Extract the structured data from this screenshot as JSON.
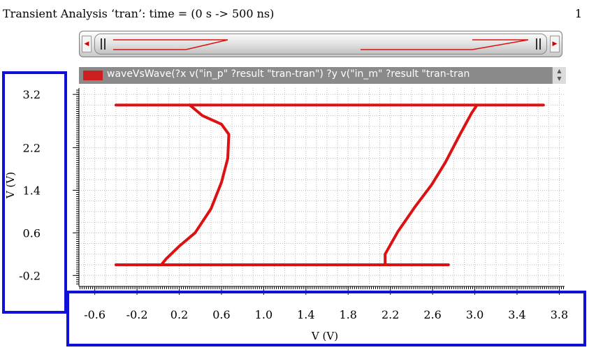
{
  "header": {
    "title": "Transient Analysis ‘tran’: time = (0 s -> 500 ns)",
    "page_number": "1"
  },
  "overview": {
    "left_arrow_icon": "scroll-left-icon",
    "right_arrow_icon": "scroll-right-icon"
  },
  "legend": {
    "label": "waveVsWave(?x v(\"in_p\" ?result \"tran-tran\") ?y v(\"in_m\" ?result \"tran-tran",
    "color": "#cc2020"
  },
  "colors": {
    "trace": "#dd1111",
    "grid": "#bcbcbc",
    "highlight_box": "#1010d8"
  },
  "chart_data": {
    "type": "line",
    "title": "",
    "xlabel": "V (V)",
    "ylabel": "V (V)",
    "xlim": [
      -0.75,
      3.85
    ],
    "ylim": [
      -0.38,
      3.32
    ],
    "x_ticks": [
      -0.6,
      -0.2,
      0.2,
      0.6,
      1.0,
      1.4,
      1.8,
      2.2,
      2.6,
      3.0,
      3.4,
      3.8
    ],
    "x_tick_labels": [
      "-0.6",
      "-0.2",
      "0.2",
      "0.6",
      "1.0",
      "1.4",
      "1.8",
      "2.2",
      "2.6",
      "3.0",
      "3.4",
      "3.8"
    ],
    "y_ticks": [
      3.2,
      2.2,
      1.4,
      0.6,
      -0.2
    ],
    "y_tick_labels": [
      "3.2",
      "2.2",
      "1.4",
      "0.6",
      "-0.2"
    ],
    "grid": true,
    "series": [
      {
        "name": "",
        "segments": [
          [
            [
              -0.4,
              3.0
            ],
            [
              3.65,
              3.0
            ]
          ],
          [
            [
              0.3,
              3.0
            ],
            [
              0.42,
              2.8
            ],
            [
              0.6,
              2.64
            ],
            [
              0.67,
              2.45
            ],
            [
              0.66,
              2.0
            ],
            [
              0.6,
              1.55
            ],
            [
              0.5,
              1.05
            ],
            [
              0.35,
              0.6
            ],
            [
              0.2,
              0.35
            ],
            [
              0.08,
              0.12
            ],
            [
              0.03,
              0.0
            ]
          ],
          [
            [
              -0.4,
              0.0
            ],
            [
              2.75,
              0.0
            ]
          ],
          [
            [
              2.15,
              0.0
            ],
            [
              2.15,
              0.2
            ],
            [
              2.27,
              0.62
            ],
            [
              2.43,
              1.08
            ],
            [
              2.59,
              1.5
            ],
            [
              2.72,
              1.92
            ],
            [
              2.86,
              2.45
            ],
            [
              2.97,
              2.85
            ],
            [
              3.02,
              3.0
            ]
          ]
        ]
      }
    ]
  }
}
